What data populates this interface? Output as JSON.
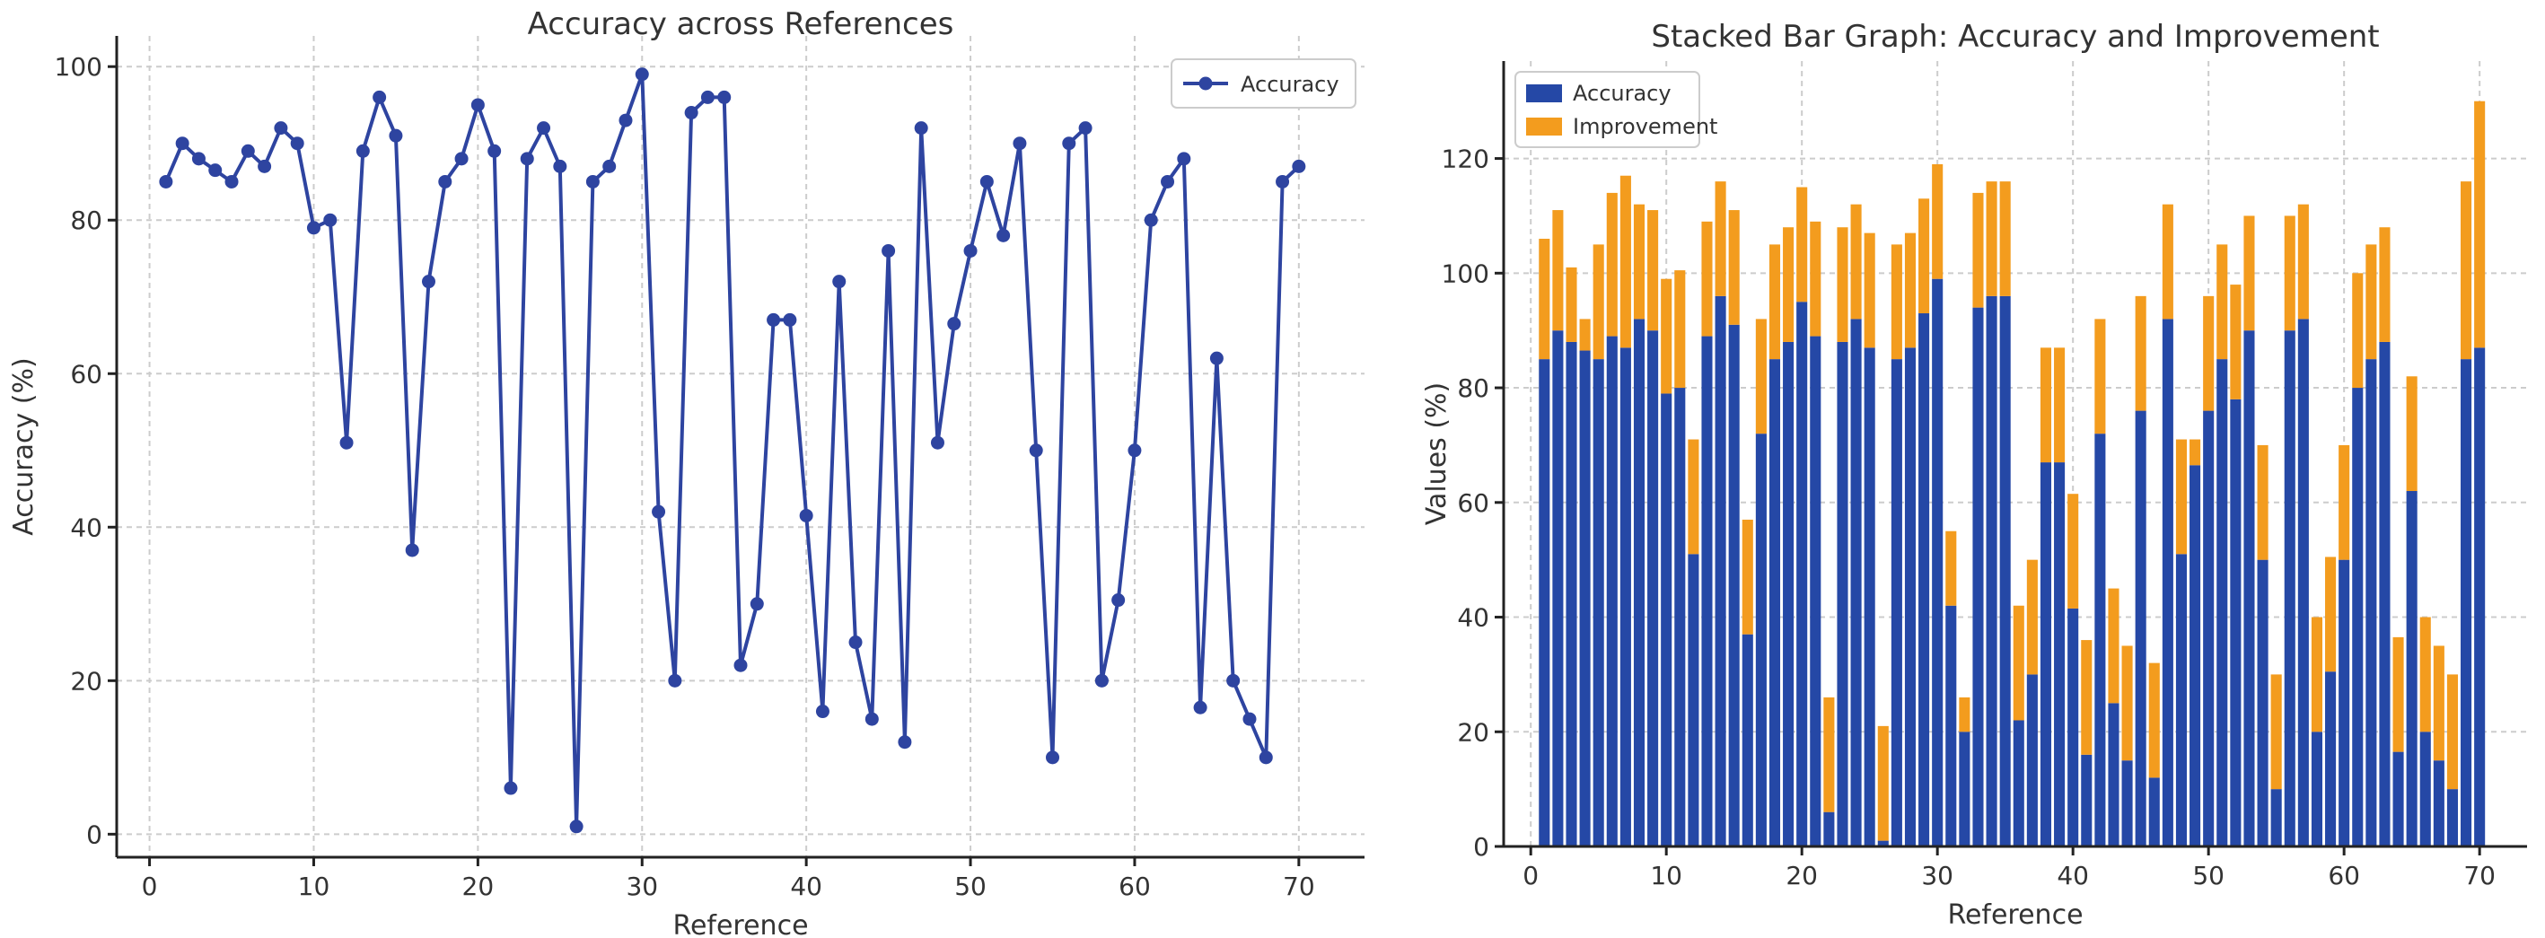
{
  "chart_data": [
    {
      "type": "line",
      "title": "Accuracy across References",
      "xlabel": "Reference",
      "ylabel": "Accuracy (%)",
      "xlim": [
        -2,
        74
      ],
      "ylim": [
        -3,
        104
      ],
      "xticks": [
        0,
        10,
        20,
        30,
        40,
        50,
        60,
        70
      ],
      "yticks": [
        0,
        20,
        40,
        60,
        80,
        100
      ],
      "grid": true,
      "legend": "top-right",
      "color": "#2E44A0",
      "series": [
        {
          "name": "Accuracy",
          "x": [
            1,
            2,
            3,
            4,
            5,
            6,
            7,
            8,
            9,
            10,
            11,
            12,
            13,
            14,
            15,
            16,
            17,
            18,
            19,
            20,
            21,
            22,
            23,
            24,
            25,
            26,
            27,
            28,
            29,
            30,
            31,
            32,
            33,
            34,
            35,
            36,
            37,
            38,
            39,
            40,
            41,
            42,
            43,
            44,
            45,
            46,
            47,
            48,
            49,
            50,
            51,
            52,
            53,
            54,
            55,
            56,
            57,
            58,
            59,
            60,
            61,
            62,
            63,
            64,
            65,
            66,
            67,
            68,
            69,
            70
          ],
          "values": [
            85,
            90,
            88,
            86.5,
            85,
            89,
            87,
            92,
            90,
            79,
            80,
            51,
            89,
            96,
            91,
            37,
            72,
            85,
            88,
            95,
            89,
            6,
            88,
            92,
            87,
            1,
            85,
            87,
            93,
            99,
            42,
            20,
            94,
            96,
            96,
            22,
            30,
            67,
            67,
            41.5,
            16,
            72,
            25,
            15,
            76,
            12,
            92,
            51,
            66.5,
            76,
            85,
            78,
            90,
            50,
            10,
            90,
            92,
            20,
            30.5,
            50,
            80,
            85,
            88,
            16.5,
            62,
            20,
            15,
            10,
            85,
            87
          ]
        }
      ]
    },
    {
      "type": "bar",
      "stacked": true,
      "title": "Stacked Bar Graph: Accuracy and Improvement",
      "xlabel": "Reference",
      "ylabel": "Values (%)",
      "xlim": [
        -2,
        73.5
      ],
      "ylim": [
        0,
        137
      ],
      "xticks": [
        0,
        10,
        20,
        30,
        40,
        50,
        60,
        70
      ],
      "yticks": [
        0,
        20,
        40,
        60,
        80,
        100,
        120
      ],
      "grid": true,
      "legend": "top-left",
      "x": [
        1,
        2,
        3,
        4,
        5,
        6,
        7,
        8,
        9,
        10,
        11,
        12,
        13,
        14,
        15,
        16,
        17,
        18,
        19,
        20,
        21,
        22,
        23,
        24,
        25,
        26,
        27,
        28,
        29,
        30,
        31,
        32,
        33,
        34,
        35,
        36,
        37,
        38,
        39,
        40,
        41,
        42,
        43,
        44,
        45,
        46,
        47,
        48,
        49,
        50,
        51,
        52,
        53,
        54,
        55,
        56,
        57,
        58,
        59,
        60,
        61,
        62,
        63,
        64,
        65,
        66,
        67,
        68,
        69,
        70
      ],
      "series": [
        {
          "name": "Accuracy",
          "color": "#2548A6",
          "values": [
            85,
            90,
            88,
            86.5,
            85,
            89,
            87,
            92,
            90,
            79,
            80,
            51,
            89,
            96,
            91,
            37,
            72,
            85,
            88,
            95,
            89,
            6,
            88,
            92,
            87,
            1,
            85,
            87,
            93,
            99,
            42,
            20,
            94,
            96,
            96,
            22,
            30,
            67,
            67,
            41.5,
            16,
            72,
            25,
            15,
            76,
            12,
            92,
            51,
            66.5,
            76,
            85,
            78,
            90,
            50,
            10,
            90,
            92,
            20,
            30.5,
            50,
            80,
            85,
            88,
            16.5,
            62,
            20,
            15,
            10,
            85,
            87
          ]
        },
        {
          "name": "Improvement",
          "color": "#F39C1E",
          "values": [
            21,
            21,
            13,
            5.5,
            20,
            25,
            30,
            20,
            21,
            20,
            20.5,
            20,
            20,
            20,
            20,
            20,
            20,
            20,
            20,
            20,
            20,
            20,
            20,
            20,
            20,
            20,
            20,
            20,
            20,
            20,
            13,
            6,
            20,
            20,
            20,
            20,
            20,
            20,
            20,
            20,
            20,
            20,
            20,
            20,
            20,
            20,
            20,
            20,
            4.5,
            20,
            20,
            20,
            20,
            20,
            20,
            20,
            20,
            20,
            20,
            20,
            20,
            20,
            20,
            20,
            20,
            20,
            20,
            20,
            31,
            43
          ]
        }
      ]
    }
  ]
}
